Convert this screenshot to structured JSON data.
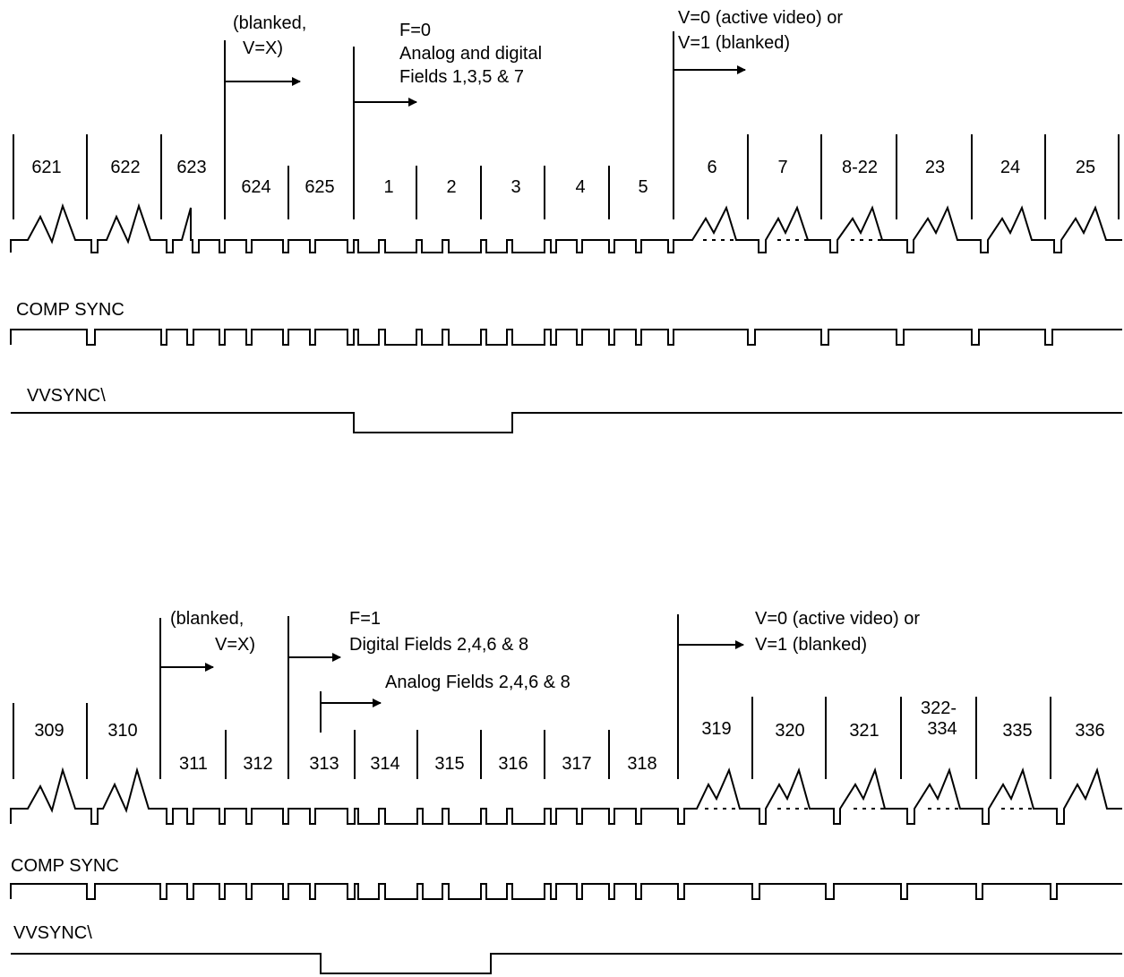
{
  "colors": {
    "ink": "#000000",
    "background": "#ffffff"
  },
  "panels": [
    {
      "id": "field-1",
      "line_numbers": [
        "621",
        "622",
        "623",
        "624",
        "625",
        "1",
        "2",
        "3",
        "4",
        "5",
        "6",
        "7",
        "8-22",
        "23",
        "24",
        "25"
      ],
      "annotations": {
        "blanked": "(blanked,",
        "blanked_v": "V=X)",
        "field_flag": "F=0",
        "field_desc_1": "Analog and digital",
        "field_desc_2": "Fields 1,3,5 & 7",
        "v_note_1": "V=0 (active video) or",
        "v_note_2": "V=1 (blanked)"
      },
      "comp_sync_label": "COMP SYNC",
      "vvsync_label": "VVSYNC\\"
    },
    {
      "id": "field-2",
      "line_numbers": [
        "309",
        "310",
        "311",
        "312",
        "313",
        "314",
        "315",
        "316",
        "317",
        "318",
        "319",
        "320",
        "321",
        "322-",
        "334",
        "335",
        "336"
      ],
      "annotations": {
        "blanked": "(blanked,",
        "blanked_v": "V=X)",
        "field_flag": "F=1",
        "field_desc_1": "Digital Fields 2,4,6 & 8",
        "field_desc_2": "Analog Fields 2,4,6 & 8",
        "v_note_1": "V=0 (active video) or",
        "v_note_2": "V=1 (blanked)"
      },
      "comp_sync_label": "COMP SYNC",
      "vvsync_label": "VVSYNC\\"
    }
  ]
}
